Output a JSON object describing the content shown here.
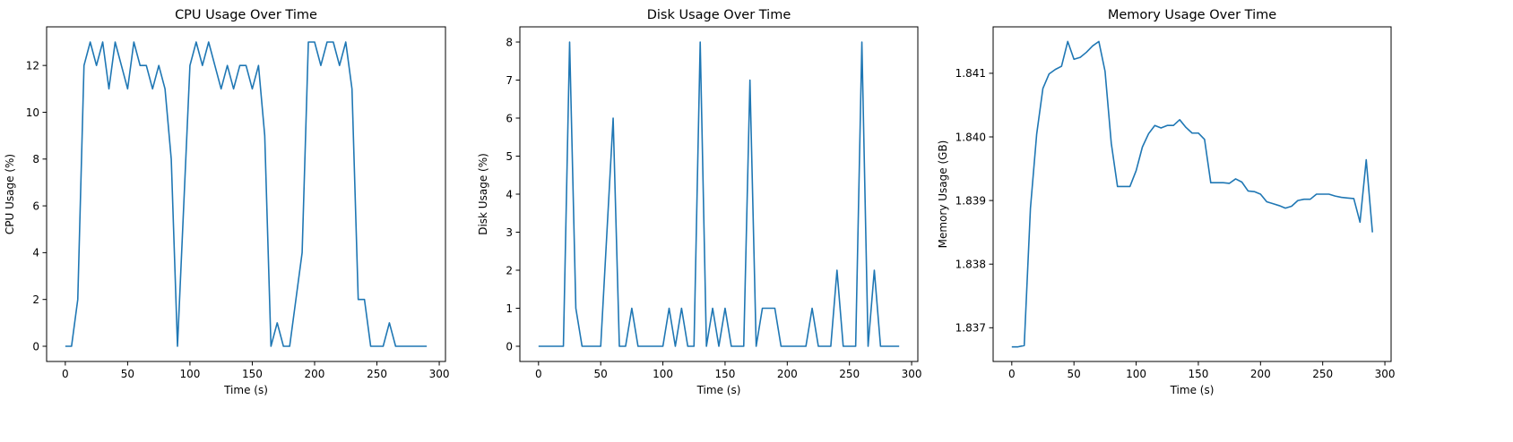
{
  "chart_data": [
    {
      "type": "line",
      "title": "CPU Usage Over Time",
      "xlabel": "Time (s)",
      "ylabel": "CPU Usage (%)",
      "xlim": [
        -15,
        305
      ],
      "ylim": [
        -0.65,
        13.65
      ],
      "xticks": [
        0,
        50,
        100,
        150,
        200,
        250,
        300
      ],
      "yticks": [
        0,
        2,
        4,
        6,
        8,
        10,
        12
      ],
      "ytick_decimals": 0,
      "color": "#1f77b4",
      "grid": false,
      "series": [
        {
          "x": [
            0,
            5,
            10,
            15,
            20,
            25,
            30,
            35,
            40,
            45,
            50,
            55,
            60,
            65,
            70,
            75,
            80,
            85,
            90,
            95,
            100,
            105,
            110,
            115,
            120,
            125,
            130,
            135,
            140,
            145,
            150,
            155,
            160,
            165,
            170,
            175,
            180,
            185,
            190,
            195,
            200,
            205,
            210,
            215,
            220,
            225,
            230,
            235,
            240,
            245,
            250,
            255,
            260,
            265,
            270,
            275,
            280,
            285,
            290
          ],
          "values": [
            0,
            0,
            2,
            12,
            13,
            12,
            13,
            11,
            13,
            12,
            11,
            13,
            12,
            12,
            11,
            12,
            11,
            8,
            0,
            6,
            12,
            13,
            12,
            13,
            12,
            11,
            12,
            11,
            12,
            12,
            11,
            12,
            9,
            0,
            1,
            0,
            0,
            2,
            4,
            13,
            13,
            12,
            13,
            13,
            12,
            13,
            11,
            2,
            2,
            0,
            0,
            0,
            1,
            0,
            0,
            0,
            0,
            0,
            0
          ]
        }
      ]
    },
    {
      "type": "line",
      "title": "Disk Usage Over Time",
      "xlabel": "Time (s)",
      "ylabel": "Disk Usage (%)",
      "xlim": [
        -15,
        305
      ],
      "ylim": [
        -0.4,
        8.4
      ],
      "xticks": [
        0,
        50,
        100,
        150,
        200,
        250,
        300
      ],
      "yticks": [
        0,
        1,
        2,
        3,
        4,
        5,
        6,
        7,
        8
      ],
      "ytick_decimals": 0,
      "color": "#1f77b4",
      "grid": false,
      "series": [
        {
          "x": [
            0,
            5,
            10,
            15,
            20,
            25,
            30,
            35,
            40,
            45,
            50,
            55,
            60,
            65,
            70,
            75,
            80,
            85,
            90,
            95,
            100,
            105,
            110,
            115,
            120,
            125,
            130,
            135,
            140,
            145,
            150,
            155,
            160,
            165,
            170,
            175,
            180,
            185,
            190,
            195,
            200,
            205,
            210,
            215,
            220,
            225,
            230,
            235,
            240,
            245,
            250,
            255,
            260,
            265,
            270,
            275,
            280,
            285,
            290
          ],
          "values": [
            0,
            0,
            0,
            0,
            0,
            8,
            1,
            0,
            0,
            0,
            0,
            3,
            6,
            0,
            0,
            1,
            0,
            0,
            0,
            0,
            0,
            1,
            0,
            1,
            0,
            0,
            8,
            0,
            1,
            0,
            1,
            0,
            0,
            0,
            7,
            0,
            1,
            1,
            1,
            0,
            0,
            0,
            0,
            0,
            1,
            0,
            0,
            0,
            2,
            0,
            0,
            0,
            8,
            0,
            2,
            0,
            0,
            0,
            0
          ]
        }
      ]
    },
    {
      "type": "line",
      "title": "Memory Usage Over Time",
      "xlabel": "Time (s)",
      "ylabel": "Memory Usage (GB)",
      "xlim": [
        -15,
        305
      ],
      "ylim": [
        1.83647,
        1.84173
      ],
      "xticks": [
        0,
        50,
        100,
        150,
        200,
        250,
        300
      ],
      "yticks": [
        1.837,
        1.838,
        1.839,
        1.84,
        1.841
      ],
      "ytick_decimals": 3,
      "color": "#1f77b4",
      "grid": false,
      "series": [
        {
          "x": [
            0,
            5,
            10,
            15,
            20,
            25,
            30,
            35,
            40,
            45,
            50,
            55,
            60,
            65,
            70,
            75,
            80,
            85,
            90,
            95,
            100,
            105,
            110,
            115,
            120,
            125,
            130,
            135,
            140,
            145,
            150,
            155,
            160,
            165,
            170,
            175,
            180,
            185,
            190,
            195,
            200,
            205,
            210,
            215,
            220,
            225,
            230,
            235,
            240,
            245,
            250,
            255,
            260,
            265,
            270,
            275,
            280,
            285,
            290
          ],
          "values": [
            1.8367,
            1.8367,
            1.83672,
            1.83888,
            1.84004,
            1.84076,
            1.84099,
            1.84106,
            1.84111,
            1.8415,
            1.84122,
            1.84125,
            1.84133,
            1.84143,
            1.8415,
            1.84103,
            1.8399,
            1.83922,
            1.83922,
            1.83922,
            1.83947,
            1.83984,
            1.84005,
            1.84018,
            1.84014,
            1.84018,
            1.84018,
            1.84027,
            1.84015,
            1.84006,
            1.84006,
            1.83996,
            1.83928,
            1.83928,
            1.83928,
            1.83927,
            1.83934,
            1.83929,
            1.83915,
            1.83914,
            1.8391,
            1.83898,
            1.83895,
            1.83892,
            1.83888,
            1.83891,
            1.839,
            1.83902,
            1.83902,
            1.8391,
            1.8391,
            1.8391,
            1.83907,
            1.83905,
            1.83904,
            1.83903,
            1.83866,
            1.83964,
            1.8385
          ]
        }
      ]
    }
  ]
}
